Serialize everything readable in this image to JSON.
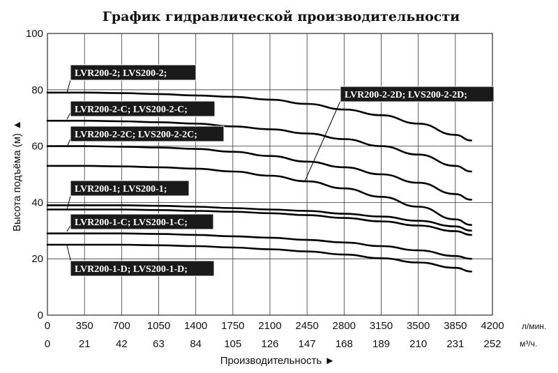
{
  "chart_data": {
    "type": "line",
    "title": "График гидравлической производительности",
    "ylabel": "Высота подъёма (м) ▲",
    "xlabel": "Производительность ►",
    "ylim": [
      0,
      100
    ],
    "xlim": [
      0,
      4200
    ],
    "y_ticks": [
      "0",
      "20",
      "40",
      "60",
      "80",
      "100"
    ],
    "x_ticks_primary": [
      "0",
      "350",
      "700",
      "1050",
      "1400",
      "1750",
      "2100",
      "2450",
      "2800",
      "3150",
      "3500",
      "3850",
      "4200"
    ],
    "x_unit_primary": "л/мин.",
    "x_ticks_secondary": [
      "0",
      "21",
      "42",
      "63",
      "84",
      "105",
      "126",
      "147",
      "168",
      "189",
      "210",
      "231",
      "252"
    ],
    "x_unit_secondary": "м³/ч.",
    "grid": true,
    "series": [
      {
        "name": "LVR200-2; LVS200-2;",
        "x": [
          0,
          350,
          700,
          1050,
          1400,
          1750,
          2100,
          2450,
          2800,
          3150,
          3500,
          3850,
          4000
        ],
        "y": [
          79,
          79,
          78.8,
          78.5,
          78,
          77.5,
          76.5,
          75,
          73,
          71,
          68,
          64,
          62
        ]
      },
      {
        "name": "LVR200-2-C; LVS200-2-C;",
        "x": [
          0,
          350,
          700,
          1050,
          1400,
          1750,
          2100,
          2450,
          2800,
          3150,
          3500,
          3850,
          4000
        ],
        "y": [
          69,
          69,
          68.8,
          68.5,
          68,
          67,
          66,
          64.5,
          62.5,
          60,
          57,
          53,
          51
        ]
      },
      {
        "name": "LVR200-2-2C; LVS200-2-2C;",
        "x": [
          0,
          350,
          700,
          1050,
          1400,
          1750,
          2100,
          2450,
          2800,
          3150,
          3500,
          3850,
          4000
        ],
        "y": [
          60,
          60,
          59.8,
          59.5,
          59,
          58,
          56.5,
          54.5,
          52.5,
          50,
          47,
          43,
          41
        ]
      },
      {
        "name": "LVR200-2-2D; LVS200-2-2D;",
        "x": [
          0,
          350,
          700,
          1050,
          1400,
          1750,
          2100,
          2450,
          2800,
          3150,
          3500,
          3850,
          4000
        ],
        "y": [
          53,
          53,
          52.8,
          52.5,
          52,
          51,
          49.5,
          47.5,
          45,
          42,
          38.5,
          34,
          32
        ]
      },
      {
        "name": "LVR200-1; LVS200-1;",
        "x": [
          0,
          350,
          700,
          1050,
          1400,
          1750,
          2100,
          2450,
          2800,
          3150,
          3500,
          3850,
          4000
        ],
        "y": [
          39,
          39,
          39,
          38.8,
          38.5,
          38,
          37.5,
          37,
          36,
          35,
          33.5,
          31.5,
          30
        ]
      },
      {
        "name": "LVR200-1-C; LVS200-1-C;",
        "x": [
          0,
          350,
          700,
          1050,
          1400,
          1750,
          2100,
          2450,
          2800,
          3150,
          3500,
          3850,
          4000
        ],
        "y": [
          37.5,
          37.5,
          37.5,
          37.3,
          37,
          36.7,
          36.2,
          35.5,
          34.5,
          33.3,
          31.8,
          29.8,
          28.5
        ]
      },
      {
        "name": "LVR200-1-D; LVS200-1-D;",
        "x": [
          0,
          350,
          700,
          1050,
          1400,
          1750,
          2100,
          2450,
          2800,
          3150,
          3500,
          3850,
          4000
        ],
        "y": [
          29,
          29,
          29,
          28.8,
          28.5,
          28,
          27.5,
          26.7,
          25.8,
          24.5,
          23,
          21,
          20
        ]
      },
      {
        "name": "",
        "x": [
          0,
          350,
          700,
          1050,
          1400,
          1750,
          2100,
          2450,
          2800,
          3150,
          3500,
          3850,
          4000
        ],
        "y": [
          25,
          25,
          25,
          24.8,
          24.5,
          24,
          23.4,
          22.6,
          21.5,
          20.2,
          18.7,
          16.8,
          15.5
        ]
      }
    ],
    "labels": [
      {
        "text": "LVR200-2; LVS200-2;"
      },
      {
        "text": "LVR200-2-C; LVS200-2-C;"
      },
      {
        "text": "LVR200-2-2C; LVS200-2-2C;"
      },
      {
        "text": "LVR200-2-2D; LVS200-2-2D;"
      },
      {
        "text": "LVR200-1; LVS200-1;"
      },
      {
        "text": "LVR200-1-C; LVS200-1-C;"
      },
      {
        "text": "LVR200-1-D; LVS200-1-D;"
      }
    ]
  }
}
